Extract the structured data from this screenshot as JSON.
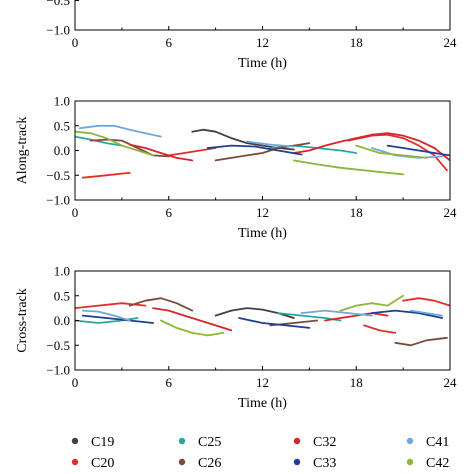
{
  "chart_data": [
    {
      "type": "line",
      "title": "",
      "xlabel": "Time (h)",
      "ylabel": "",
      "xlim": [
        0,
        24
      ],
      "ylim": [
        -1.0,
        1.0
      ],
      "xticks": [
        "0",
        "6",
        "12",
        "18",
        "24"
      ],
      "yticks": [
        "-0.5",
        "-1.0"
      ],
      "grid": false,
      "series": []
    },
    {
      "type": "line",
      "title": "",
      "xlabel": "Time (h)",
      "ylabel": "Along-track",
      "xlim": [
        0,
        24
      ],
      "ylim": [
        -1.0,
        1.0
      ],
      "xticks": [
        "0",
        "6",
        "12",
        "18",
        "24"
      ],
      "yticks": [
        "1.0",
        "0.5",
        "0.0",
        "-0.5",
        "-1.0"
      ],
      "grid": false,
      "series": [
        {
          "name": "C19",
          "color": "#404040",
          "segments": [
            [
              [
                7.5,
                0.38
              ],
              [
                8.2,
                0.42
              ],
              [
                9.0,
                0.38
              ],
              [
                10.0,
                0.25
              ],
              [
                11.0,
                0.15
              ],
              [
                12.0,
                0.1
              ],
              [
                13.0,
                0.05
              ],
              [
                14.0,
                0.02
              ]
            ]
          ]
        },
        {
          "name": "C20",
          "color": "#e0302a",
          "segments": [
            [
              [
                0.5,
                -0.55
              ],
              [
                2.0,
                -0.5
              ],
              [
                3.5,
                -0.45
              ]
            ],
            [
              [
                6.0,
                -0.1
              ],
              [
                7.0,
                -0.05
              ],
              [
                8.0,
                0.0
              ],
              [
                9.0,
                0.05
              ]
            ],
            [
              [
                17.5,
                0.2
              ],
              [
                19.0,
                0.3
              ],
              [
                20.0,
                0.32
              ],
              [
                21.0,
                0.25
              ],
              [
                22.0,
                0.1
              ],
              [
                23.0,
                -0.1
              ],
              [
                23.8,
                -0.4
              ]
            ]
          ]
        },
        {
          "name": "C25",
          "color": "#2aa79b",
          "segments": [
            [
              [
                0.0,
                0.28
              ],
              [
                1.0,
                0.22
              ],
              [
                2.0,
                0.15
              ],
              [
                3.0,
                0.1
              ]
            ],
            [
              [
                12.5,
                0.05
              ],
              [
                14.0,
                0.1
              ],
              [
                15.5,
                0.05
              ],
              [
                17.0,
                0.0
              ],
              [
                18.0,
                -0.05
              ]
            ]
          ]
        },
        {
          "name": "C26",
          "color": "#7b4a3a",
          "segments": [
            [
              [
                1.0,
                0.2
              ],
              [
                2.0,
                0.22
              ],
              [
                3.0,
                0.2
              ],
              [
                4.0,
                0.05
              ],
              [
                5.0,
                -0.1
              ],
              [
                6.0,
                -0.12
              ]
            ],
            [
              [
                9.0,
                -0.2
              ],
              [
                10.0,
                -0.15
              ],
              [
                11.0,
                -0.1
              ],
              [
                12.0,
                -0.05
              ],
              [
                13.0,
                0.05
              ],
              [
                14.0,
                0.1
              ],
              [
                15.0,
                0.15
              ]
            ]
          ]
        },
        {
          "name": "C32",
          "color": "#d8242a",
          "segments": [
            [
              [
                3.5,
                0.12
              ],
              [
                4.5,
                0.05
              ],
              [
                5.5,
                -0.05
              ],
              [
                6.5,
                -0.15
              ],
              [
                7.5,
                -0.2
              ]
            ],
            [
              [
                14.0,
                -0.05
              ],
              [
                15.0,
                0.0
              ],
              [
                16.0,
                0.1
              ],
              [
                17.0,
                0.18
              ],
              [
                18.0,
                0.25
              ],
              [
                19.0,
                0.32
              ],
              [
                20.0,
                0.35
              ],
              [
                21.0,
                0.3
              ],
              [
                22.0,
                0.2
              ],
              [
                23.0,
                0.05
              ],
              [
                24.0,
                -0.2
              ]
            ]
          ]
        },
        {
          "name": "C33",
          "color": "#1f3f8f",
          "segments": [
            [
              [
                8.5,
                0.05
              ],
              [
                10.0,
                0.1
              ],
              [
                11.5,
                0.08
              ],
              [
                13.0,
                0.0
              ],
              [
                14.5,
                -0.08
              ]
            ],
            [
              [
                20.0,
                0.1
              ],
              [
                21.0,
                0.05
              ],
              [
                22.0,
                0.0
              ],
              [
                23.0,
                -0.05
              ],
              [
                24.0,
                -0.1
              ]
            ]
          ]
        },
        {
          "name": "C41",
          "color": "#6fa8dc",
          "segments": [
            [
              [
                0.3,
                0.45
              ],
              [
                1.5,
                0.5
              ],
              [
                2.5,
                0.5
              ],
              [
                3.5,
                0.42
              ],
              [
                4.5,
                0.35
              ],
              [
                5.5,
                0.28
              ]
            ],
            [
              [
                11.0,
                0.18
              ],
              [
                12.5,
                0.12
              ],
              [
                14.0,
                0.08
              ]
            ],
            [
              [
                19.0,
                0.05
              ],
              [
                20.5,
                -0.1
              ],
              [
                22.0,
                -0.15
              ],
              [
                23.5,
                -0.12
              ]
            ]
          ]
        },
        {
          "name": "C42",
          "color": "#8db63c",
          "segments": [
            [
              [
                0.0,
                0.38
              ],
              [
                1.0,
                0.35
              ],
              [
                2.0,
                0.25
              ],
              [
                3.0,
                0.1
              ],
              [
                4.0,
                0.0
              ],
              [
                5.0,
                -0.1
              ]
            ],
            [
              [
                14.0,
                -0.2
              ],
              [
                15.5,
                -0.28
              ],
              [
                17.0,
                -0.35
              ],
              [
                18.5,
                -0.4
              ],
              [
                20.0,
                -0.45
              ],
              [
                21.0,
                -0.48
              ]
            ],
            [
              [
                18.0,
                0.1
              ],
              [
                19.5,
                -0.05
              ],
              [
                21.0,
                -0.1
              ],
              [
                22.5,
                -0.15
              ]
            ]
          ]
        }
      ]
    },
    {
      "type": "line",
      "title": "",
      "xlabel": "Time (h)",
      "ylabel": "Cross-track",
      "xlim": [
        0,
        24
      ],
      "ylim": [
        -1.0,
        1.0
      ],
      "xticks": [
        "0",
        "6",
        "12",
        "18",
        "24"
      ],
      "yticks": [
        "1.0",
        "0.5",
        "0.0",
        "-0.5",
        "-1.0"
      ],
      "grid": false,
      "series": [
        {
          "name": "C19",
          "color": "#404040",
          "segments": [
            [
              [
                9.0,
                0.1
              ],
              [
                10.0,
                0.2
              ],
              [
                11.0,
                0.25
              ],
              [
                12.0,
                0.22
              ],
              [
                13.0,
                0.15
              ],
              [
                14.0,
                0.05
              ]
            ]
          ]
        },
        {
          "name": "C20",
          "color": "#e0302a",
          "segments": [
            [
              [
                0.0,
                0.25
              ],
              [
                1.5,
                0.3
              ],
              [
                3.0,
                0.35
              ],
              [
                4.5,
                0.3
              ]
            ],
            [
              [
                18.5,
                -0.1
              ],
              [
                19.5,
                -0.2
              ],
              [
                20.5,
                -0.25
              ]
            ],
            [
              [
                21.0,
                0.4
              ],
              [
                22.0,
                0.45
              ],
              [
                23.0,
                0.4
              ],
              [
                24.0,
                0.3
              ]
            ]
          ]
        },
        {
          "name": "C25",
          "color": "#2aa79b",
          "segments": [
            [
              [
                0.0,
                0.0
              ],
              [
                1.5,
                -0.05
              ],
              [
                3.0,
                0.0
              ],
              [
                4.0,
                0.05
              ]
            ],
            [
              [
                13.0,
                0.15
              ],
              [
                14.5,
                0.1
              ],
              [
                16.0,
                0.05
              ],
              [
                17.0,
                0.0
              ]
            ]
          ]
        },
        {
          "name": "C26",
          "color": "#7b4a3a",
          "segments": [
            [
              [
                3.5,
                0.3
              ],
              [
                4.5,
                0.4
              ],
              [
                5.5,
                0.45
              ],
              [
                6.5,
                0.35
              ],
              [
                7.5,
                0.2
              ]
            ],
            [
              [
                12.5,
                -0.1
              ],
              [
                14.0,
                -0.05
              ],
              [
                15.5,
                0.0
              ]
            ]
          ]
        },
        {
          "name": "C32",
          "color": "#d8242a",
          "segments": [
            [
              [
                5.0,
                0.25
              ],
              [
                6.0,
                0.2
              ],
              [
                7.0,
                0.1
              ],
              [
                8.0,
                0.0
              ],
              [
                9.0,
                -0.1
              ],
              [
                10.0,
                -0.2
              ]
            ],
            [
              [
                16.0,
                0.0
              ],
              [
                17.0,
                0.05
              ],
              [
                18.0,
                0.1
              ],
              [
                19.0,
                0.15
              ],
              [
                20.0,
                0.1
              ]
            ]
          ]
        },
        {
          "name": "C33",
          "color": "#1f3f8f",
          "segments": [
            [
              [
                0.5,
                0.1
              ],
              [
                2.0,
                0.05
              ],
              [
                3.5,
                0.0
              ],
              [
                5.0,
                -0.05
              ]
            ],
            [
              [
                10.5,
                0.05
              ],
              [
                12.0,
                -0.05
              ],
              [
                13.5,
                -0.1
              ],
              [
                15.0,
                -0.15
              ]
            ],
            [
              [
                19.0,
                0.15
              ],
              [
                20.5,
                0.2
              ],
              [
                22.0,
                0.15
              ],
              [
                23.5,
                0.05
              ]
            ]
          ]
        },
        {
          "name": "C41",
          "color": "#6fa8dc",
          "segments": [
            [
              [
                0.5,
                0.2
              ],
              [
                1.5,
                0.18
              ],
              [
                2.5,
                0.1
              ],
              [
                3.5,
                0.0
              ]
            ],
            [
              [
                14.5,
                0.15
              ],
              [
                16.0,
                0.2
              ],
              [
                17.5,
                0.15
              ],
              [
                19.0,
                0.1
              ]
            ],
            [
              [
                21.5,
                0.2
              ],
              [
                22.5,
                0.15
              ],
              [
                23.5,
                0.1
              ]
            ]
          ]
        },
        {
          "name": "C42",
          "color": "#8db63c",
          "segments": [
            [
              [
                5.5,
                0.0
              ],
              [
                6.5,
                -0.15
              ],
              [
                7.5,
                -0.25
              ],
              [
                8.5,
                -0.3
              ],
              [
                9.5,
                -0.25
              ]
            ],
            [
              [
                17.0,
                0.2
              ],
              [
                18.0,
                0.3
              ],
              [
                19.0,
                0.35
              ],
              [
                20.0,
                0.3
              ],
              [
                21.0,
                0.5
              ]
            ]
          ]
        },
        {
          "name": "",
          "color": "#7b4a3a",
          "segments": [
            [
              [
                20.5,
                -0.45
              ],
              [
                21.5,
                -0.5
              ],
              [
                22.5,
                -0.4
              ],
              [
                23.8,
                -0.35
              ]
            ]
          ]
        }
      ]
    }
  ],
  "legend": {
    "placement": "bottom",
    "entries": [
      {
        "name": "C19",
        "color": "#404040"
      },
      {
        "name": "C25",
        "color": "#2aa79b"
      },
      {
        "name": "C32",
        "color": "#d8242a"
      },
      {
        "name": "C41",
        "color": "#6fa8dc"
      },
      {
        "name": "C20",
        "color": "#e0302a"
      },
      {
        "name": "C26",
        "color": "#7b4a3a"
      },
      {
        "name": "C33",
        "color": "#1f3f8f"
      },
      {
        "name": "C42",
        "color": "#8db63c"
      }
    ]
  }
}
